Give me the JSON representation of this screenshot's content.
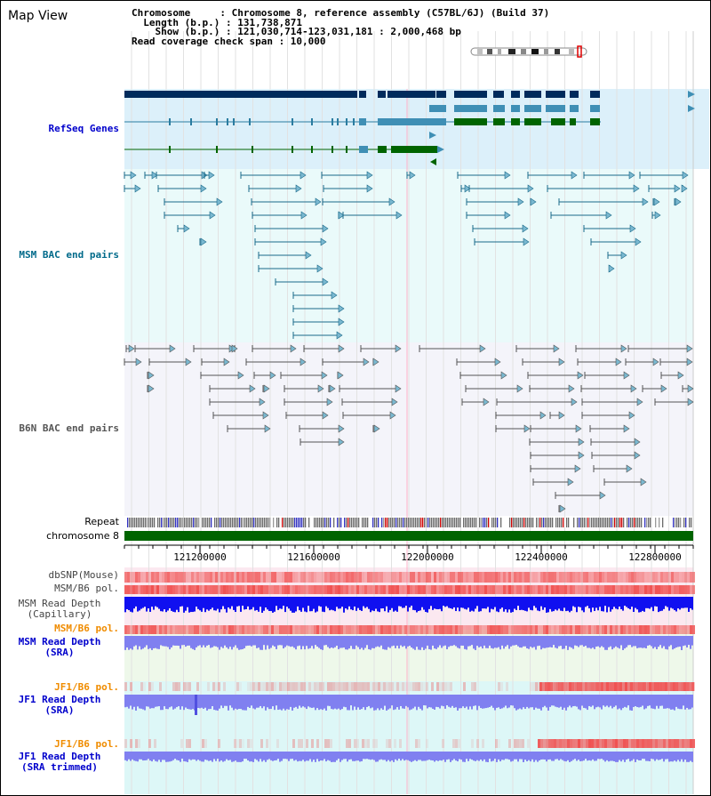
{
  "view_title": "Map View",
  "info": {
    "chromosome": "Chromosome     : Chromosome 8, reference assembly (C57BL/6J) (Build 37)",
    "length": "  Length (b.p.) : 131,738,871",
    "show": "    Show (b.p.) : 121,030,714-123,031,181 : 2,000,468 bp",
    "coverage": "Read coverage check span : 10,000"
  },
  "tracks": {
    "refseq": "RefSeq Genes",
    "msm_bac": "MSM BAC end pairs",
    "b6n_bac": "B6N BAC end pairs",
    "repeat": "Repeat",
    "chromosome": "chromosome 8",
    "dbsnp": "dbSNP(Mouse)",
    "msm_b6_pol_a": "MSM/B6 pol.",
    "msm_depth_cap_1": "MSM Read Depth",
    "msm_depth_cap_2": "(Capillary)",
    "msm_b6_pol_b": "MSM/B6 pol.",
    "msm_depth_sra_1": "MSM Read Depth",
    "msm_depth_sra_2": "(SRA)",
    "jf1_pol_a": "JF1/B6 pol.",
    "jf1_depth_sra_1": "JF1 Read Depth",
    "jf1_depth_sra_2": "(SRA)",
    "jf1_pol_b": "JF1/B6 pol.",
    "jf1_depth_trim_1": "JF1 Read Depth",
    "jf1_depth_trim_2": "(SRA trimmed)"
  },
  "axis": {
    "ticks": [
      "121200000",
      "121600000",
      "122000000",
      "122400000",
      "122800000"
    ]
  },
  "colors": {
    "refseq_dark": "#002b5c",
    "refseq_mid": "#3f8fb5",
    "refseq_green": "#006400",
    "msm_bac": "#1a6a8a",
    "b6n_bac": "#555555",
    "chrom_bar": "#006400",
    "msm_depth_cap": "#1010f0",
    "sra_depth": "#8080f0",
    "pol": "#f05050",
    "label_blue": "#0000cc",
    "label_teal": "#006a8a",
    "label_orange": "#f08c00"
  }
}
